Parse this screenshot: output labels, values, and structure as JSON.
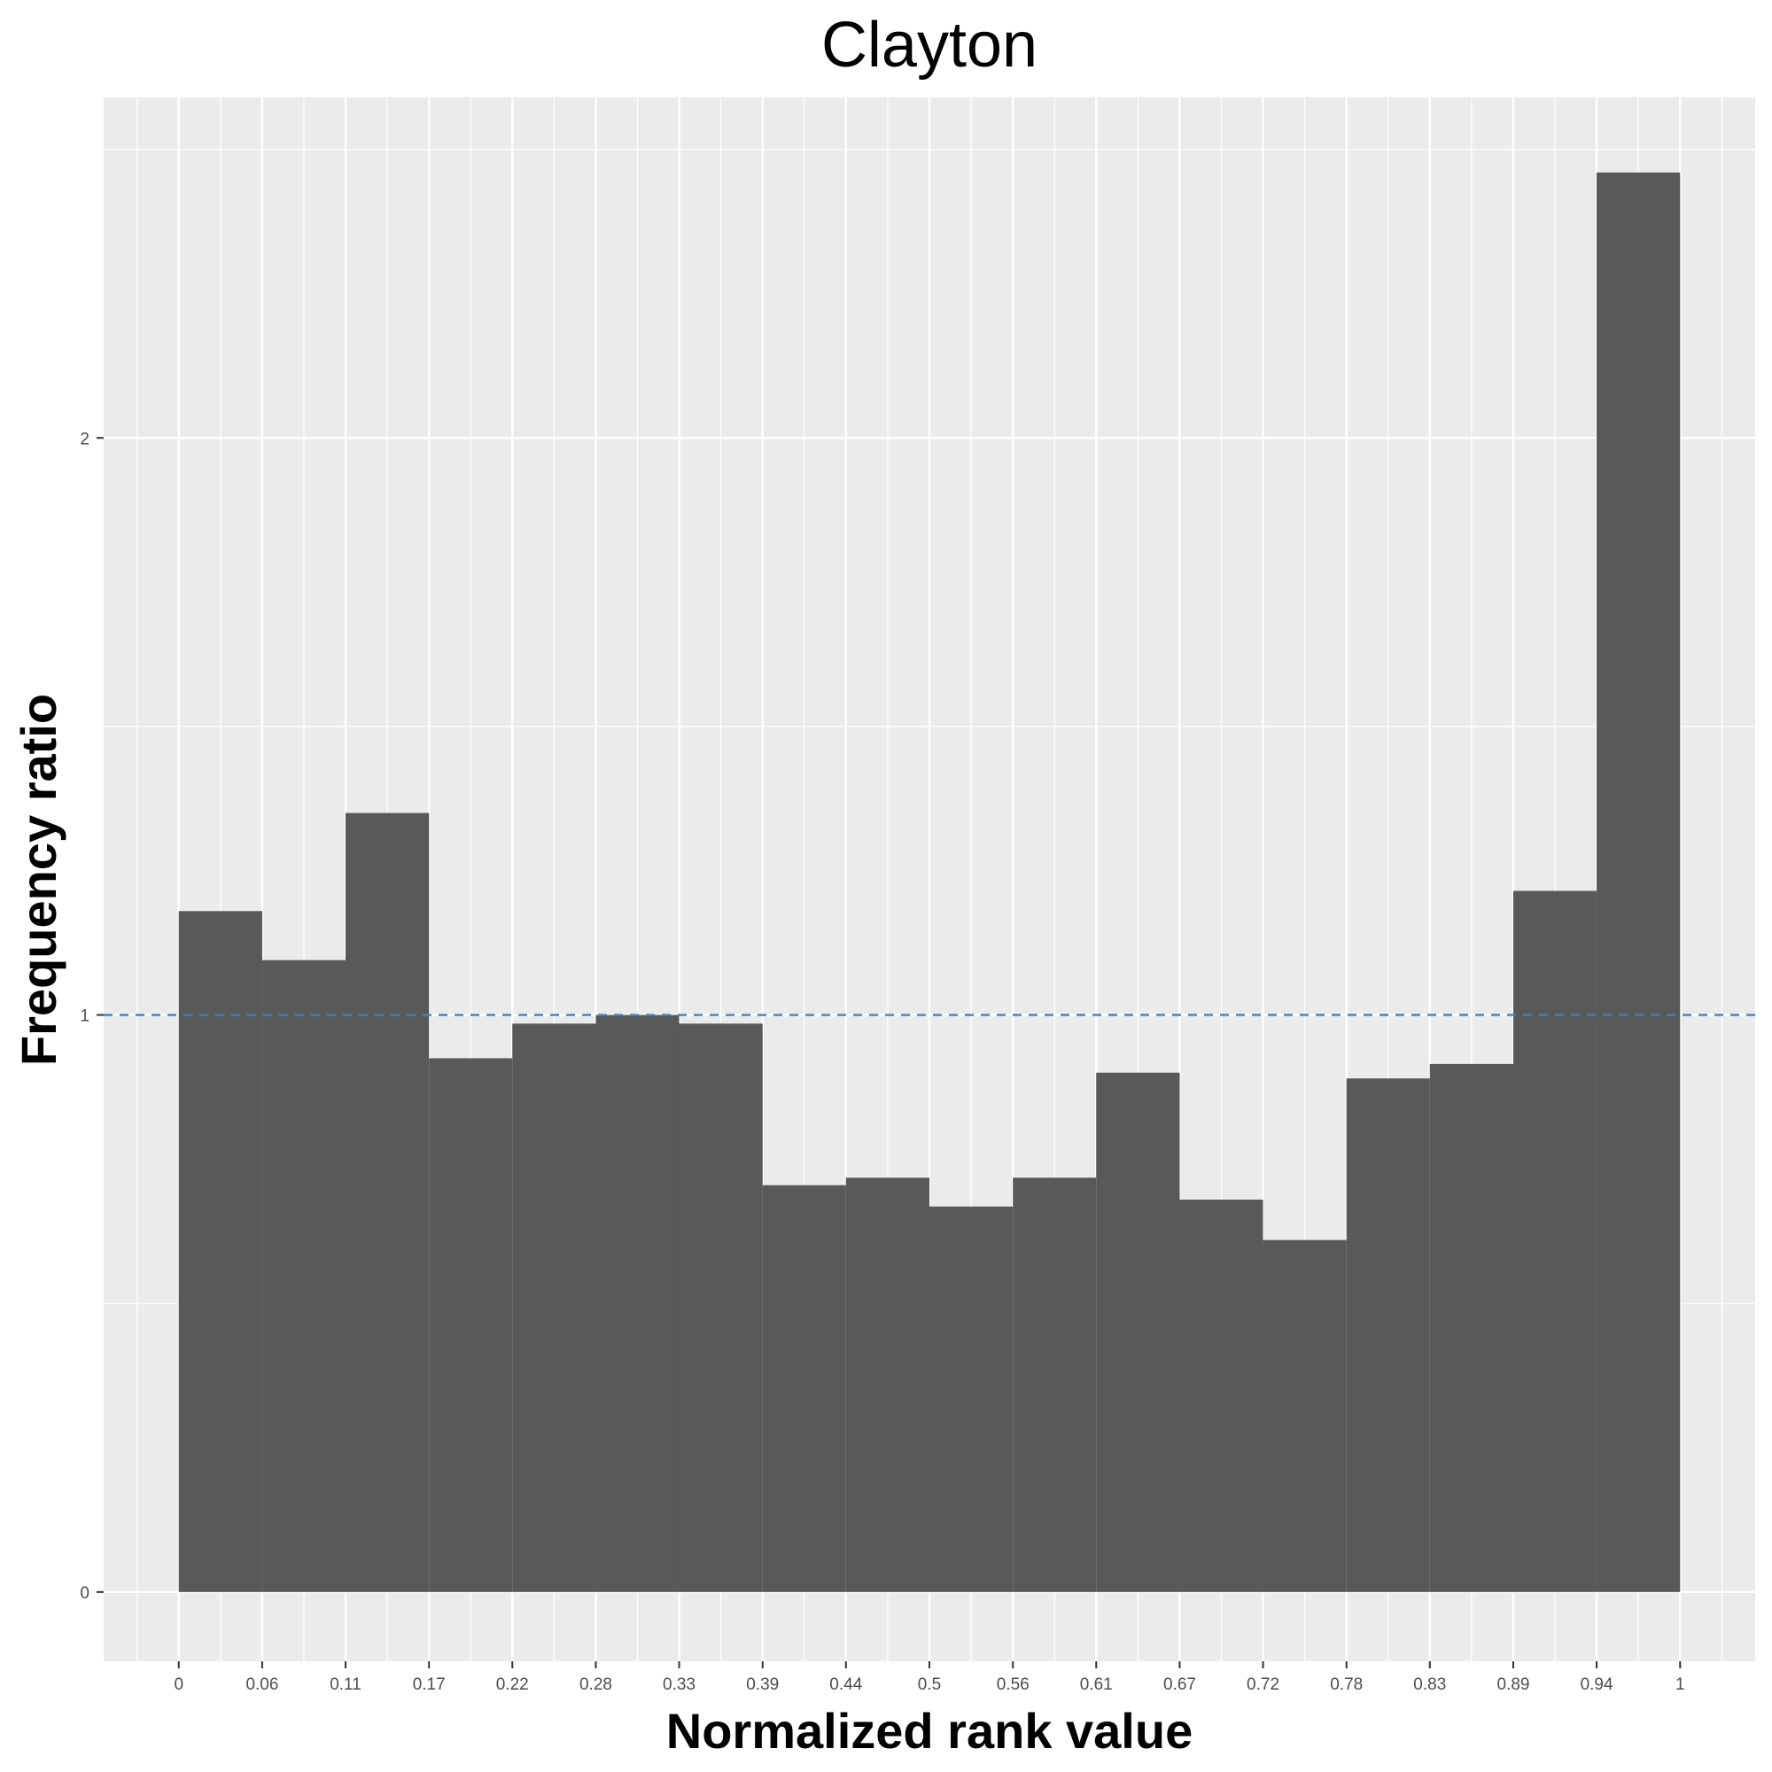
{
  "chart_data": {
    "type": "bar",
    "title": "Clayton",
    "xlabel": "Normalized rank value",
    "ylabel": "Frequency ratio",
    "x_tick_labels": [
      "0",
      "0.06",
      "0.11",
      "0.17",
      "0.22",
      "0.28",
      "0.33",
      "0.39",
      "0.44",
      "0.5",
      "0.56",
      "0.61",
      "0.67",
      "0.72",
      "0.78",
      "0.83",
      "0.89",
      "0.94",
      "1"
    ],
    "y_tick_labels": [
      "0",
      "1",
      "2"
    ],
    "y_ticks": [
      0,
      1,
      2
    ],
    "xlim": [
      -0.05,
      1.05
    ],
    "ylim": [
      -0.12,
      2.59
    ],
    "bin_edges": [
      0,
      0.0556,
      0.1111,
      0.1667,
      0.2222,
      0.2778,
      0.3333,
      0.3889,
      0.4444,
      0.5,
      0.5556,
      0.6111,
      0.6667,
      0.7222,
      0.7778,
      0.8333,
      0.8889,
      0.9444,
      1.0
    ],
    "values": [
      1.18,
      1.095,
      1.35,
      0.925,
      0.985,
      1.0,
      0.985,
      0.705,
      0.718,
      0.668,
      0.718,
      0.9,
      0.68,
      0.61,
      0.89,
      0.915,
      1.215,
      2.46
    ],
    "reference_line": {
      "y": 1,
      "style": "dashed",
      "color": "#4a7fb5"
    },
    "colors": {
      "bar": "#595959",
      "panel": "#ebebeb",
      "grid": "#ffffff"
    },
    "grid": true
  }
}
